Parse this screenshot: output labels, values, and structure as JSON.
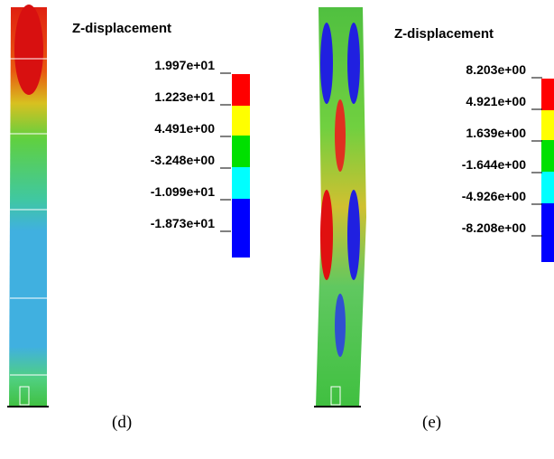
{
  "panels": [
    {
      "legend_title": "Z-displacement",
      "levels": [
        "1.997e+01",
        "1.223e+01",
        "4.491e+00",
        "-3.248e+00",
        "-1.099e+01",
        "-1.873e+01"
      ],
      "caption": "(d)"
    },
    {
      "legend_title": "Z-displacement",
      "levels": [
        "8.203e+00",
        "4.921e+00",
        "1.639e+00",
        "-1.644e+00",
        "-4.926e+00",
        "-8.208e+00"
      ],
      "caption": "(e)"
    }
  ]
}
